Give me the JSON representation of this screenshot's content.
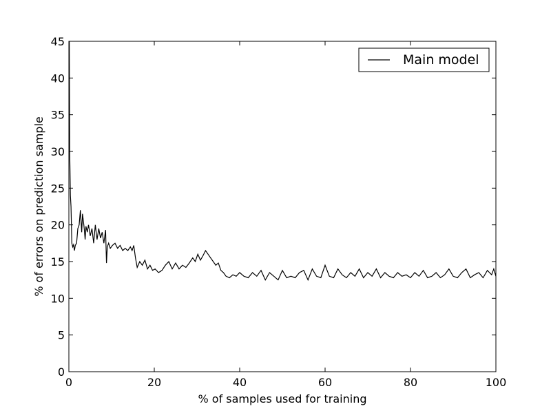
{
  "chart_data": {
    "type": "line",
    "title": "",
    "xlabel": "% of samples used for training",
    "ylabel": "% of errors on prediction sample",
    "xlim": [
      0,
      100
    ],
    "ylim": [
      0,
      45
    ],
    "xticks": [
      0,
      20,
      40,
      60,
      80,
      100
    ],
    "yticks": [
      0,
      5,
      10,
      15,
      20,
      25,
      30,
      35,
      40,
      45
    ],
    "grid": false,
    "legend": {
      "placement": "top-right",
      "entries": [
        "Main model"
      ]
    },
    "series": [
      {
        "name": "Main model",
        "color": "#000000",
        "x": [
          0.1,
          0.2,
          0.35,
          0.5,
          0.7,
          0.9,
          1.1,
          1.3,
          1.5,
          1.8,
          2.1,
          2.4,
          2.7,
          3.0,
          3.2,
          3.4,
          3.6,
          3.8,
          4.0,
          4.3,
          4.6,
          5.0,
          5.4,
          5.8,
          6.2,
          6.6,
          7.0,
          7.4,
          7.8,
          8.2,
          8.6,
          8.8,
          9.0,
          9.3,
          9.7,
          10.2,
          10.8,
          11.4,
          12.0,
          12.6,
          13.2,
          13.8,
          14.4,
          14.8,
          15.2,
          15.6,
          16.0,
          16.6,
          17.2,
          17.8,
          18.4,
          19.0,
          19.6,
          20.2,
          21.0,
          21.8,
          22.6,
          23.4,
          24.2,
          25.0,
          25.8,
          26.6,
          27.4,
          28.2,
          29.0,
          29.6,
          30.2,
          30.8,
          31.4,
          32.0,
          32.6,
          33.2,
          33.8,
          34.4,
          35.0,
          35.6,
          36.2,
          36.8,
          37.6,
          38.4,
          39.2,
          40.0,
          41.0,
          42.0,
          43.0,
          44.0,
          45.0,
          46.0,
          47.0,
          48.0,
          49.0,
          50.0,
          51.0,
          52.0,
          53.0,
          54.0,
          55.0,
          56.0,
          57.0,
          58.0,
          59.0,
          60.0,
          61.0,
          62.0,
          63.0,
          64.0,
          65.0,
          66.0,
          67.0,
          68.0,
          69.0,
          70.0,
          71.0,
          72.0,
          73.0,
          74.0,
          75.0,
          76.0,
          77.0,
          78.0,
          79.0,
          80.0,
          81.0,
          82.0,
          83.0,
          84.0,
          85.0,
          86.0,
          87.0,
          88.0,
          89.0,
          90.0,
          91.0,
          92.0,
          93.0,
          94.0,
          95.0,
          96.0,
          97.0,
          98.0,
          99.0,
          99.5,
          100.0
        ],
        "y": [
          45.0,
          30.0,
          24.0,
          22.5,
          17.5,
          17.0,
          17.3,
          16.5,
          17.2,
          17.5,
          19.5,
          20.0,
          22.0,
          19.0,
          21.5,
          20.5,
          19.5,
          18.0,
          19.8,
          19.0,
          20.0,
          18.5,
          19.5,
          17.5,
          20.0,
          18.0,
          19.5,
          18.2,
          19.0,
          17.5,
          19.3,
          14.8,
          17.0,
          17.5,
          16.8,
          17.2,
          17.5,
          16.8,
          17.2,
          16.5,
          16.8,
          16.5,
          17.0,
          16.5,
          17.2,
          15.5,
          14.2,
          15.0,
          14.5,
          15.2,
          14.0,
          14.5,
          13.8,
          14.0,
          13.5,
          13.8,
          14.5,
          15.0,
          14.0,
          14.8,
          14.0,
          14.5,
          14.2,
          14.8,
          15.5,
          15.0,
          16.0,
          15.2,
          15.8,
          16.5,
          16.0,
          15.5,
          15.0,
          14.5,
          14.8,
          13.8,
          13.5,
          13.0,
          12.8,
          13.2,
          13.0,
          13.5,
          13.0,
          12.8,
          13.5,
          13.0,
          13.8,
          12.5,
          13.5,
          13.0,
          12.5,
          13.8,
          12.8,
          13.0,
          12.8,
          13.5,
          13.8,
          12.5,
          14.0,
          13.0,
          12.8,
          14.5,
          13.0,
          12.8,
          14.0,
          13.2,
          12.8,
          13.5,
          13.0,
          14.0,
          12.8,
          13.5,
          13.0,
          14.0,
          12.8,
          13.5,
          13.0,
          12.8,
          13.5,
          13.0,
          13.2,
          12.8,
          13.5,
          13.0,
          13.8,
          12.8,
          13.0,
          13.5,
          12.8,
          13.2,
          14.0,
          13.0,
          12.8,
          13.5,
          14.0,
          12.8,
          13.2,
          13.5,
          12.8,
          13.8,
          13.2,
          14.0,
          13.0
        ]
      }
    ]
  }
}
